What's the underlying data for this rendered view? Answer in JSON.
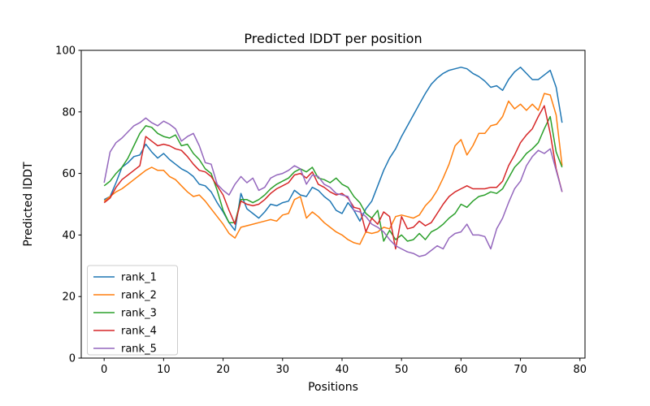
{
  "figure": {
    "title": "Predicted lDDT per position",
    "xlabel": "Positions",
    "ylabel": "Predicted lDDT"
  },
  "chart_data": {
    "type": "line",
    "title": "Predicted lDDT per position",
    "xlabel": "Positions",
    "ylabel": "Predicted lDDT",
    "xlim": [
      -3.85,
      80.85
    ],
    "ylim": [
      0,
      100
    ],
    "xticks": [
      0,
      10,
      20,
      30,
      40,
      50,
      60,
      70,
      80
    ],
    "yticks": [
      0,
      20,
      40,
      60,
      80,
      100
    ],
    "grid": false,
    "legend_position": "lower left",
    "x": [
      0,
      1,
      2,
      3,
      4,
      5,
      6,
      7,
      8,
      9,
      10,
      11,
      12,
      13,
      14,
      15,
      16,
      17,
      18,
      19,
      20,
      21,
      22,
      23,
      24,
      25,
      26,
      27,
      28,
      29,
      30,
      31,
      32,
      33,
      34,
      35,
      36,
      37,
      38,
      39,
      40,
      41,
      42,
      43,
      44,
      45,
      46,
      47,
      48,
      49,
      50,
      51,
      52,
      53,
      54,
      55,
      56,
      57,
      58,
      59,
      60,
      61,
      62,
      63,
      64,
      65,
      66,
      67,
      68,
      69,
      70,
      71,
      72,
      73,
      74,
      75,
      76,
      77
    ],
    "series": [
      {
        "name": "rank_1",
        "color": "#1f77b4",
        "values": [
          51.5,
          52.5,
          57,
          62,
          63.5,
          65.5,
          66,
          69.5,
          67,
          65,
          66.5,
          64.5,
          63,
          61.5,
          60.5,
          59,
          56.5,
          56,
          54,
          50.5,
          47.5,
          44,
          41.5,
          53.5,
          48.5,
          47,
          45.5,
          47.5,
          50,
          49.5,
          50.5,
          51,
          54.5,
          53,
          52.5,
          55.5,
          54.5,
          52.5,
          51,
          48,
          47,
          50.5,
          48,
          44.5,
          48.5,
          51,
          56,
          61,
          65,
          68,
          72,
          75.5,
          79,
          82.5,
          86,
          89,
          91,
          92.5,
          93.5,
          94,
          94.5,
          94,
          92.5,
          91.5,
          90,
          88,
          88.5,
          87,
          90.5,
          93,
          94.5,
          92.5,
          90.5,
          90.5,
          92,
          93.5,
          88,
          76.5
        ]
      },
      {
        "name": "rank_2",
        "color": "#ff7f0e",
        "values": [
          51,
          52.5,
          54,
          55,
          56.5,
          58,
          59.5,
          61,
          62,
          61,
          61,
          59,
          58,
          56,
          54,
          52.5,
          53,
          51,
          48.5,
          46,
          43.5,
          40.5,
          39,
          42.5,
          43,
          43.5,
          44,
          44.5,
          45,
          44.5,
          46.5,
          47,
          51.5,
          52.5,
          45.5,
          47.5,
          46,
          44,
          42.5,
          41,
          40,
          38.5,
          37.5,
          37,
          41,
          40.5,
          41,
          42.5,
          42,
          46,
          46.5,
          46,
          45.5,
          46.5,
          49.5,
          51.5,
          54.5,
          58.5,
          63,
          69,
          71,
          66,
          69,
          73,
          73,
          75.5,
          76,
          78.5,
          83.5,
          81,
          82.5,
          80.5,
          82.5,
          80.5,
          86,
          85.5,
          79,
          62.5
        ]
      },
      {
        "name": "rank_3",
        "color": "#2ca02c",
        "values": [
          56,
          57.5,
          60,
          62,
          65,
          69,
          73,
          75.5,
          75,
          73,
          72,
          71.5,
          72.5,
          69,
          69.5,
          66.5,
          64.5,
          61.5,
          60,
          54.5,
          48,
          44,
          44,
          51.5,
          51.5,
          50.5,
          51.5,
          53,
          55,
          56.5,
          57.5,
          58.5,
          60.5,
          61.5,
          60.5,
          62,
          58.5,
          58,
          57,
          58.5,
          56.5,
          55.5,
          52.5,
          50.5,
          47,
          45.5,
          48,
          38,
          41.5,
          38.5,
          40,
          38,
          38.5,
          40.5,
          38.5,
          41,
          42,
          43.5,
          45.5,
          47,
          50,
          49,
          51,
          52.5,
          53,
          54,
          53.5,
          55,
          58.5,
          62,
          64,
          66.5,
          68,
          70,
          74.5,
          78.5,
          67,
          62
        ]
      },
      {
        "name": "rank_4",
        "color": "#d62728",
        "values": [
          50.5,
          52,
          55.5,
          58,
          59.5,
          61,
          62.5,
          72,
          70.5,
          69,
          69.5,
          69,
          68,
          67.5,
          65.5,
          63,
          61,
          60.5,
          59,
          56,
          53,
          48,
          43.5,
          51,
          50,
          49.5,
          50,
          51.5,
          53.5,
          55,
          56,
          57,
          59.5,
          60,
          58.5,
          60.5,
          56.5,
          55.5,
          54,
          53,
          53.5,
          52,
          49,
          48.5,
          41,
          45.5,
          43.5,
          47.5,
          46,
          35.5,
          46,
          42,
          42.5,
          44.5,
          43,
          44,
          47,
          50,
          52.5,
          54,
          55,
          56,
          55,
          55,
          55,
          55.5,
          55.5,
          57.5,
          62.5,
          66,
          70,
          72.5,
          74.5,
          78.5,
          82,
          73,
          61.5,
          54
        ]
      },
      {
        "name": "rank_5",
        "color": "#9467bd",
        "values": [
          57,
          67,
          70,
          71.5,
          73.5,
          75.5,
          76.5,
          78,
          76.5,
          75.5,
          77,
          76,
          74.5,
          70.5,
          72,
          73,
          69,
          63.5,
          63,
          56.5,
          54.5,
          53,
          56.5,
          59,
          57,
          58.5,
          54.5,
          55.5,
          58.5,
          59.5,
          60,
          61,
          62.5,
          61.5,
          56.5,
          59.5,
          59,
          56.5,
          55.5,
          53.5,
          53,
          52.5,
          48,
          47.5,
          46,
          43.5,
          42.5,
          41,
          38.5,
          36.5,
          35.5,
          34.5,
          34,
          33,
          33.5,
          35,
          36.5,
          35.5,
          39,
          40.5,
          41,
          43.5,
          40,
          40,
          39.5,
          35.5,
          42,
          45.5,
          50.5,
          55,
          57.5,
          62.5,
          65.5,
          67.5,
          66.5,
          68,
          61,
          54
        ]
      }
    ]
  }
}
